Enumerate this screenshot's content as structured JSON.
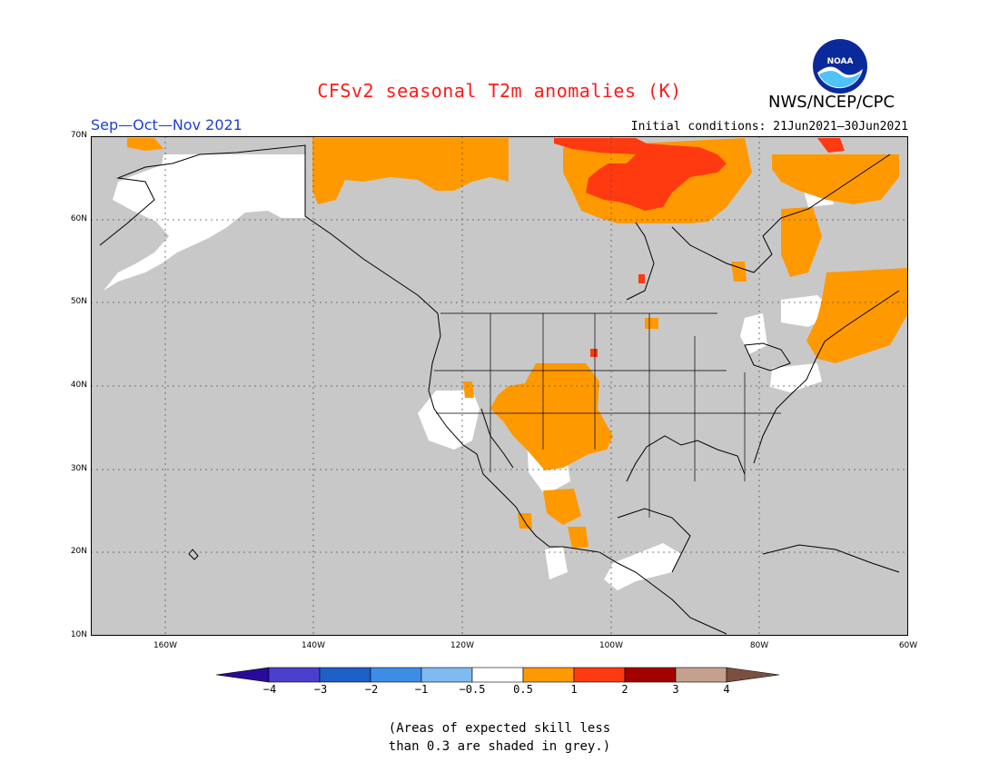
{
  "title": "CFSv2 seasonal T2m anomalies (K)",
  "season": "Sep—Oct—Nov 2021",
  "agency": "NWS/NCEP/CPC",
  "logo_text": "NOAA",
  "initial_conditions": "Initial conditions: 21Jun2021—30Jun2021",
  "map": {
    "lat_labels": [
      "70N",
      "60N",
      "50N",
      "40N",
      "30N",
      "20N",
      "10N"
    ],
    "lon_labels": [
      "160W",
      "140W",
      "120W",
      "100W",
      "80W",
      "60W"
    ],
    "extent": {
      "lon_min": -170,
      "lon_max": -60,
      "lat_min": 10,
      "lat_max": 70
    },
    "background_color": "#c8c8c8",
    "gridlines": true
  },
  "colorbar": {
    "labels": [
      "−4",
      "−3",
      "−2",
      "−1",
      "−0.5",
      "0.5",
      "1",
      "2",
      "3",
      "4"
    ],
    "colors": [
      "#2a0a9a",
      "#4b3fd0",
      "#1e5fc8",
      "#3d8de6",
      "#7fbaf0",
      "#ffffff",
      "#ff9900",
      "#ff3a10",
      "#a50000",
      "#c4a08f",
      "#7a5040"
    ]
  },
  "note": {
    "line1": "(Areas of expected skill less",
    "line2": "than 0.3 are shaded in grey.)"
  }
}
